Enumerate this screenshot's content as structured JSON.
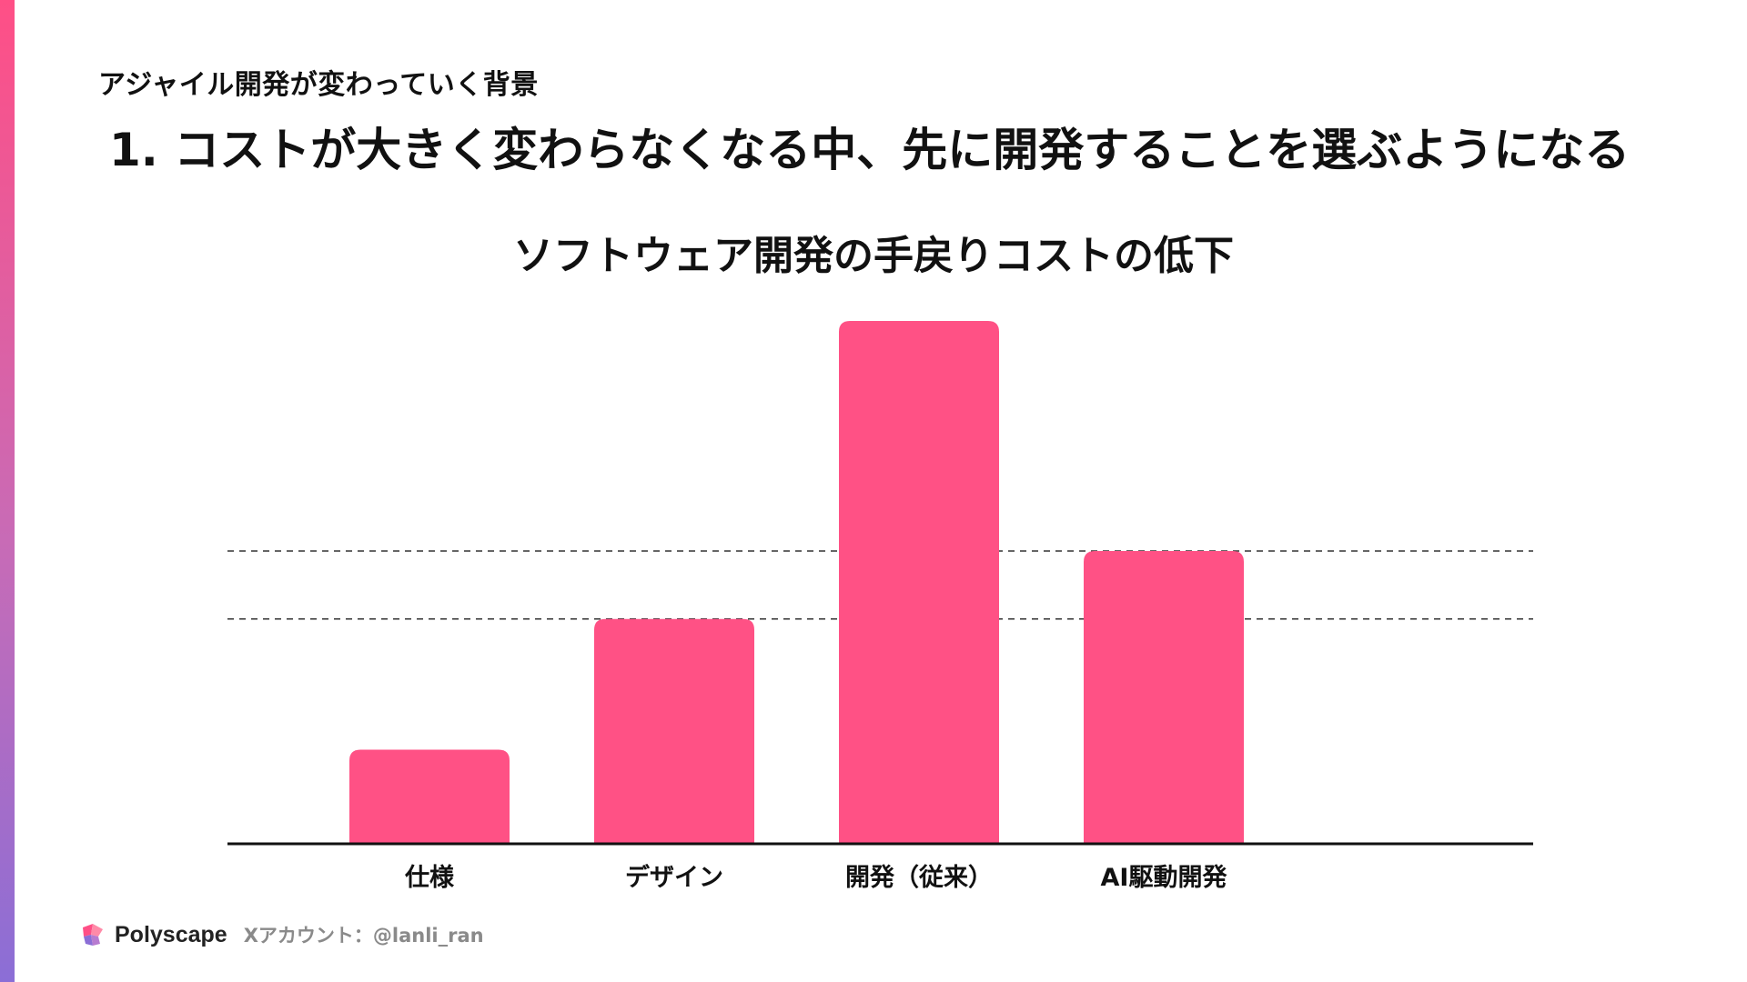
{
  "slide": {
    "section_label": "アジャイル開発が変わっていく背景",
    "headline": "1. コストが大きく変わらなくなる中、先に開発することを選ぶようになる"
  },
  "footer": {
    "brand": "Polyscape",
    "account": "Xアカウント：@lanli_ran"
  },
  "colors": {
    "accent": "#ff4f86",
    "bar": "#ff5185",
    "axis": "#111111",
    "reference_line": "#333333"
  },
  "chart_data": {
    "type": "bar",
    "title": "ソフトウェア開発の手戻りコストの低下",
    "categories": [
      "仕様",
      "デザイン",
      "開発（従来）",
      "AI駆動開発"
    ],
    "values": [
      18,
      43,
      100,
      56
    ],
    "ylim": [
      0,
      100
    ],
    "reference_lines": [
      56,
      43
    ],
    "grid": false,
    "legend": "none",
    "y_axis_visible": false
  }
}
